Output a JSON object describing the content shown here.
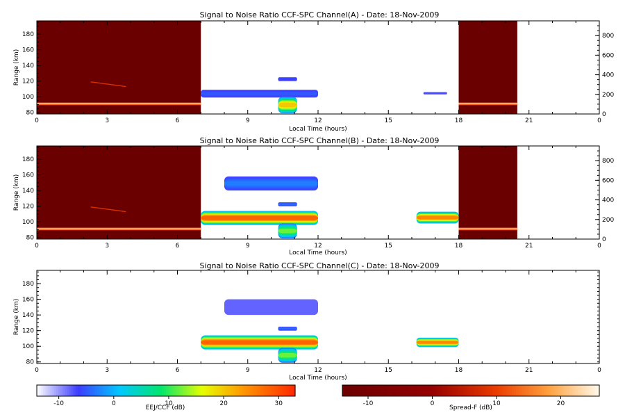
{
  "chart_data": [
    {
      "type": "heatmap",
      "title": "Signal to Noise Ratio CCF-SPC Channel(A) - Date: 18-Nov-2009",
      "xlabel": "Local Time (hours)",
      "ylabel": "Range (km)",
      "xlim": [
        0,
        24
      ],
      "ylim": [
        78,
        197
      ],
      "xticks": [
        "0",
        "3",
        "6",
        "9",
        "12",
        "15",
        "18",
        "21",
        "0"
      ],
      "yticks": [
        "80",
        "100",
        "120",
        "140",
        "160",
        "180"
      ],
      "right_ylim": [
        0,
        950
      ],
      "right_yticks": [
        "0",
        "200",
        "400",
        "600",
        "800"
      ],
      "spread_f_blocks": [
        {
          "t0": 0,
          "t1": 7,
          "layer_km": 91
        },
        {
          "t0": 18,
          "t1": 20.5,
          "layer_km": 91
        }
      ],
      "eej_regions": [
        {
          "t0": 7,
          "t1": 12,
          "r0": 99,
          "r1": 109,
          "snr_db": -5
        },
        {
          "t0": 10.3,
          "t1": 11.1,
          "r0": 79,
          "r1": 100,
          "snr_db": 20
        },
        {
          "t0": 10.3,
          "t1": 11.1,
          "r0": 120,
          "r1": 125,
          "snr_db": -6
        },
        {
          "t0": 16.5,
          "t1": 17.5,
          "r0": 103,
          "r1": 106,
          "snr_db": -7
        }
      ]
    },
    {
      "type": "heatmap",
      "title": "Signal to Noise Ratio CCF-SPC Channel(B) - Date: 18-Nov-2009",
      "xlabel": "Local Time (hours)",
      "ylabel": "Range (km)",
      "xlim": [
        0,
        24
      ],
      "ylim": [
        78,
        197
      ],
      "xticks": [
        "0",
        "3",
        "6",
        "9",
        "12",
        "15",
        "18",
        "21",
        "0"
      ],
      "yticks": [
        "80",
        "100",
        "120",
        "140",
        "160",
        "180"
      ],
      "right_ylim": [
        0,
        950
      ],
      "right_yticks": [
        "0",
        "200",
        "400",
        "600",
        "800"
      ],
      "spread_f_blocks": [
        {
          "t0": 0,
          "t1": 7,
          "layer_km": 91
        },
        {
          "t0": 18,
          "t1": 20.5,
          "layer_km": 91
        }
      ],
      "eej_regions": [
        {
          "t0": 7,
          "t1": 12,
          "r0": 96,
          "r1": 114,
          "snr_db": 28
        },
        {
          "t0": 10.3,
          "t1": 11.1,
          "r0": 79,
          "r1": 98,
          "snr_db": 12
        },
        {
          "t0": 10.3,
          "t1": 11.1,
          "r0": 120,
          "r1": 125,
          "snr_db": -4
        },
        {
          "t0": 8,
          "t1": 12,
          "r0": 140,
          "r1": 158,
          "snr_db": -3
        },
        {
          "t0": 16.2,
          "t1": 18,
          "r0": 98,
          "r1": 113,
          "snr_db": 25
        }
      ]
    },
    {
      "type": "heatmap",
      "title": "Signal to Noise Ratio CCF-SPC Channel(C) - Date: 18-Nov-2009",
      "xlabel": "Local Time (hours)",
      "ylabel": "Range (km)",
      "xlim": [
        0,
        24
      ],
      "ylim": [
        78,
        197
      ],
      "xticks": [
        "0",
        "3",
        "6",
        "9",
        "12",
        "15",
        "18",
        "21",
        "0"
      ],
      "yticks": [
        "80",
        "100",
        "120",
        "140",
        "160",
        "180"
      ],
      "spread_f_blocks": [],
      "eej_regions": [
        {
          "t0": 7,
          "t1": 12,
          "r0": 96,
          "r1": 114,
          "snr_db": 28
        },
        {
          "t0": 10.3,
          "t1": 11.1,
          "r0": 79,
          "r1": 98,
          "snr_db": 12
        },
        {
          "t0": 10.3,
          "t1": 11.1,
          "r0": 120,
          "r1": 125,
          "snr_db": -4
        },
        {
          "t0": 8,
          "t1": 12,
          "r0": 140,
          "r1": 160,
          "snr_db": -8
        },
        {
          "t0": 16.2,
          "t1": 18,
          "r0": 99,
          "r1": 111,
          "snr_db": 25
        }
      ]
    },
    {
      "type": "colorbar",
      "label": "EEJ/CCF (dB)",
      "range": [
        -14,
        33
      ],
      "ticks": [
        "-10",
        "0",
        "10",
        "20",
        "30"
      ],
      "tick_values": [
        -10,
        0,
        10,
        20,
        30
      ]
    },
    {
      "type": "colorbar",
      "label": "Spread-F (dB)",
      "range": [
        -14,
        26
      ],
      "ticks": [
        "-10",
        "0",
        "10",
        "20"
      ],
      "tick_values": [
        -10,
        0,
        10,
        20
      ]
    }
  ],
  "colors": {
    "spread_f_bg": "#6b0000",
    "eej_low": "#ffffff",
    "eej_high": "#ff2a00"
  }
}
